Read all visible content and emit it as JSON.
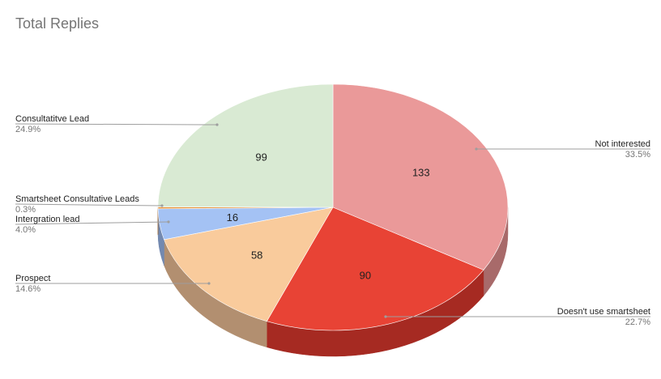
{
  "chart_data": {
    "type": "pie",
    "style": "3d",
    "title": "Total Replies",
    "slices": [
      {
        "label": "Not interested",
        "value": 133,
        "percent": "33.5%",
        "color": "#ea9999",
        "side": "#a86a6a"
      },
      {
        "label": "Doesn't use smartsheet",
        "value": 90,
        "percent": "22.7%",
        "color": "#e84335",
        "side": "#a62a22"
      },
      {
        "label": "Prospect",
        "value": 58,
        "percent": "14.6%",
        "color": "#f9cb9c",
        "side": "#b28f70"
      },
      {
        "label": "Intergration lead",
        "value": 16,
        "percent": "4.0%",
        "color": "#a4c2f4",
        "side": "#7389b0"
      },
      {
        "label": "Smartsheet Consultative Leads",
        "value": 1,
        "percent": "0.3%",
        "color": "#e69138",
        "side": "#a56627"
      },
      {
        "label": "Consultatitve Lead",
        "value": 99,
        "percent": "24.9%",
        "color": "#d9ead3",
        "side": "#9aa895"
      }
    ],
    "legend": "labels with leader lines"
  }
}
